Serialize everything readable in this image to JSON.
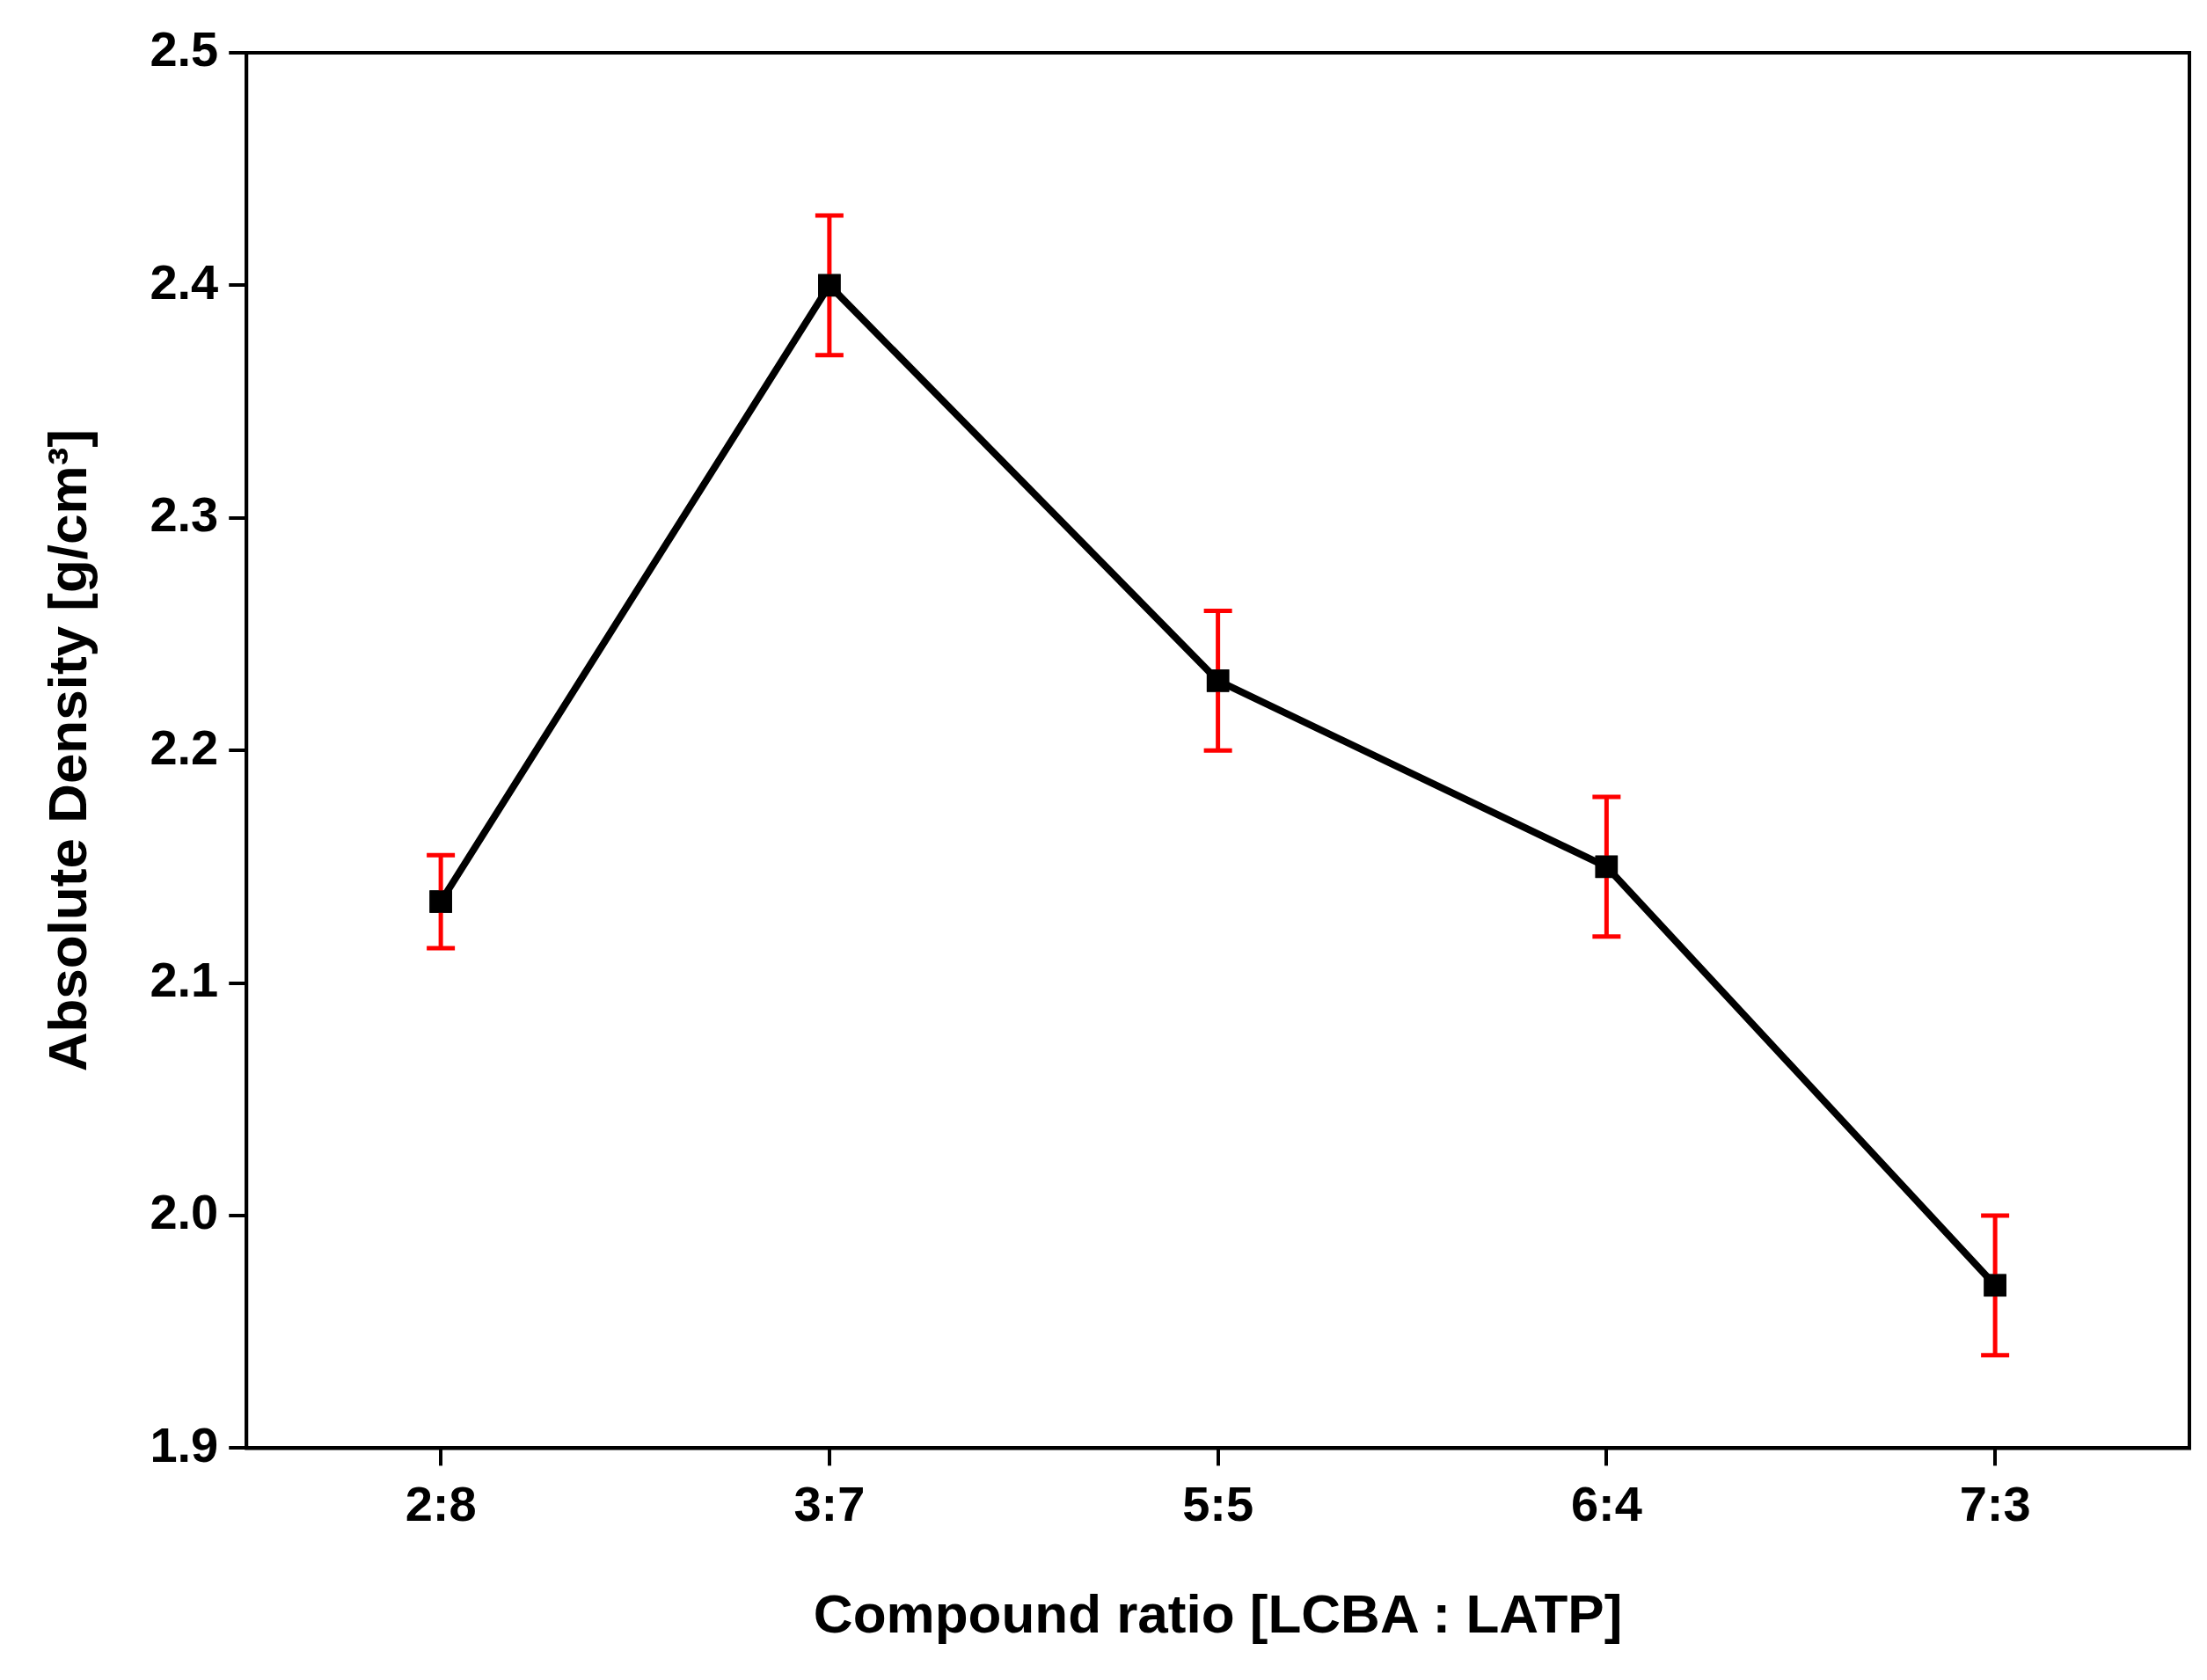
{
  "chart_data": {
    "type": "line",
    "xlabel": "Compound ratio [LCBA : LATP]",
    "ylabel": "Absolute Density [g/cm³]",
    "categories": [
      "2:8",
      "3:7",
      "5:5",
      "6:4",
      "7:3"
    ],
    "series": [
      {
        "color": "#000000",
        "values": [
          2.135,
          2.4,
          2.23,
          2.15,
          1.97
        ],
        "errors": [
          0.02,
          0.03,
          0.03,
          0.03,
          0.03
        ]
      }
    ],
    "ylim": [
      1.9,
      2.5
    ],
    "yticks": [
      1.9,
      {
        "value": 2.0,
        "label": "2.0"
      },
      2.1,
      2.2,
      2.3,
      2.4,
      2.5
    ],
    "grid": false,
    "legend": false,
    "marker": "square",
    "line_style": "solid"
  }
}
